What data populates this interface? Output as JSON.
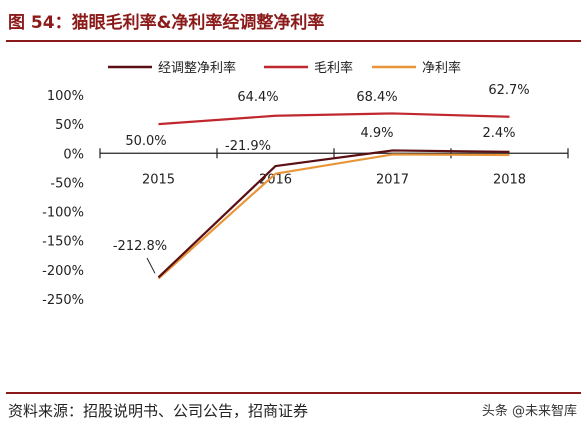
{
  "title": "图 54：猫眼毛利率&净利率经调整净利率",
  "source": "资料来源：招股说明书、公司公告，招商证券",
  "watermark": "头条 @未来智库",
  "chart_data": {
    "type": "line",
    "categories": [
      "2015",
      "2016",
      "2017",
      "2018"
    ],
    "ylim": [
      -250,
      100
    ],
    "yticks": [
      {
        "value": 100,
        "label": "100%"
      },
      {
        "value": 50,
        "label": "50%"
      },
      {
        "value": 0,
        "label": "0%"
      },
      {
        "value": -50,
        "label": "-50%"
      },
      {
        "value": -100,
        "label": "-100%"
      },
      {
        "value": -150,
        "label": "-150%"
      },
      {
        "value": -200,
        "label": "-200%"
      },
      {
        "value": -250,
        "label": "-250%"
      }
    ],
    "legend_position": "top",
    "series": [
      {
        "name": "经调整净利率",
        "color": "#5a0f14",
        "values": [
          -212.8,
          -21.9,
          4.9,
          2.4
        ]
      },
      {
        "name": "毛利率",
        "color": "#c0282d",
        "values": [
          50.0,
          64.4,
          68.4,
          62.7
        ]
      },
      {
        "name": "净利率",
        "color": "#e8953a",
        "values": [
          -215.0,
          -35.0,
          -2.0,
          -3.0
        ]
      }
    ],
    "data_labels": [
      {
        "text": "50.0%",
        "series": 1,
        "index": 0
      },
      {
        "text": "64.4%",
        "series": 1,
        "index": 1
      },
      {
        "text": "68.4%",
        "series": 1,
        "index": 2
      },
      {
        "text": "62.7%",
        "series": 1,
        "index": 3
      },
      {
        "text": "-212.8%",
        "series": 0,
        "index": 0
      },
      {
        "text": "-21.9%",
        "series": 0,
        "index": 1
      },
      {
        "text": "4.9%",
        "series": 0,
        "index": 2
      },
      {
        "text": "2.4%",
        "series": 0,
        "index": 3
      }
    ]
  }
}
